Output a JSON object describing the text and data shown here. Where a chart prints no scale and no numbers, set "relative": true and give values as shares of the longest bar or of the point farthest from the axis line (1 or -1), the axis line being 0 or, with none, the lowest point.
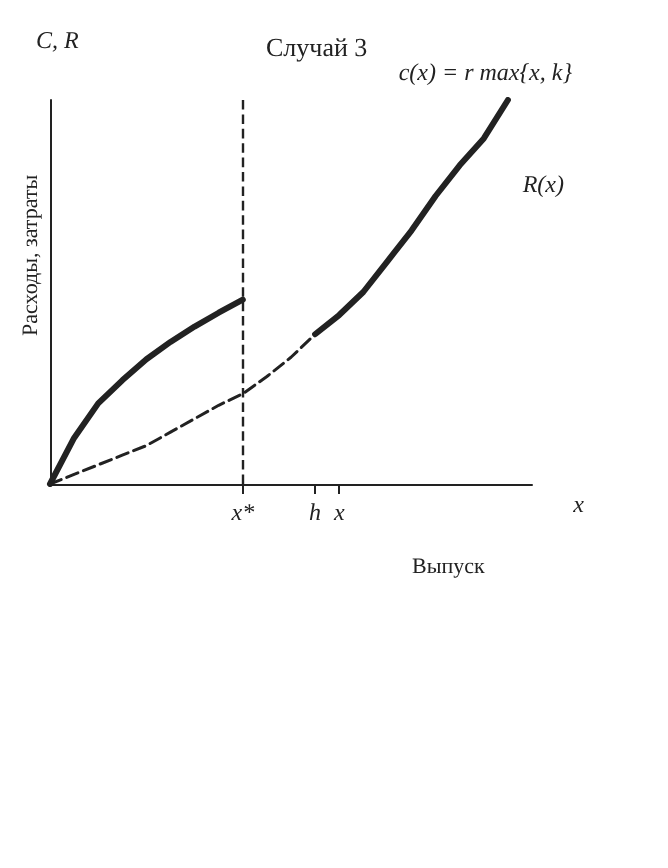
{
  "chart_data": {
    "type": "line",
    "title": "Случай 3",
    "xlabel": "Выпуск",
    "ylabel": "Расходы, затраты",
    "relative": true,
    "marker": "none",
    "grid": false,
    "categories": [
      null,
      null,
      null,
      null,
      null,
      null,
      null,
      null,
      "x*",
      null,
      null,
      "h",
      "x",
      null,
      null,
      null,
      null,
      null,
      null,
      null,
      null
    ],
    "series": [
      {
        "color": "#222222",
        "line_style": "solid",
        "values": [
          0,
          0.12,
          0.21,
          0.27,
          0.325,
          0.37,
          0.41,
          0.446,
          0.48,
          null,
          null,
          null,
          null,
          null,
          null,
          null,
          null,
          null,
          null,
          null,
          null
        ]
      },
      {
        "color": "#222222",
        "line_style": "dashed",
        "values": [
          0,
          0.025,
          0.05,
          0.075,
          0.1,
          0.135,
          0.17,
          0.205,
          0.235,
          0.28,
          0.33,
          0.39,
          null,
          null,
          null,
          null,
          null,
          null,
          null,
          null,
          null
        ]
      },
      {
        "color": "#222222",
        "line_style": "solid",
        "values": [
          null,
          null,
          null,
          null,
          null,
          null,
          null,
          null,
          null,
          null,
          null,
          0.39,
          0.44,
          0.5,
          0.58,
          0.66,
          0.75,
          0.83,
          0.9,
          1,
          null
        ]
      }
    ],
    "ref_lines": [
      {
        "axis": "x",
        "value": "x*",
        "line_style": "dashed",
        "color": "#222222"
      }
    ],
    "annotations": [
      "C, R",
      "x",
      "c(x) = r max{x, k}",
      "R(x)"
    ]
  }
}
